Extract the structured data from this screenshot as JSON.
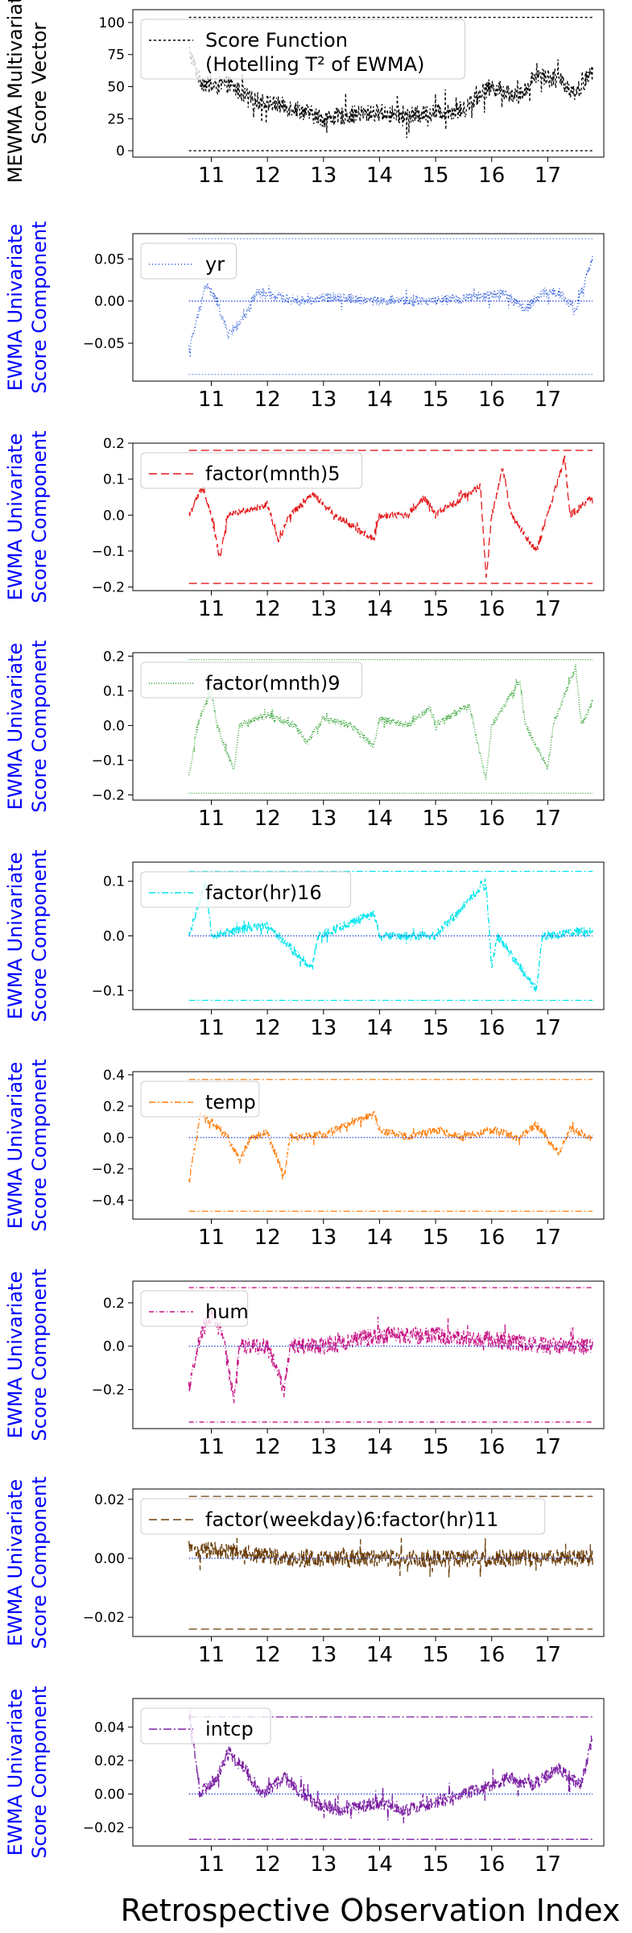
{
  "figure": {
    "xlabel": "Retrospective Observation Index",
    "x_ticks": [
      11,
      12,
      13,
      14,
      15,
      16,
      17
    ],
    "xlim": [
      9.6,
      18.0
    ],
    "data_x_range": [
      10.6,
      17.8
    ]
  },
  "chart_data": [
    {
      "type": "line",
      "ylabel_lines": [
        "MEWMA Multivariate",
        "Score Vector"
      ],
      "ylabel_color": "#000000",
      "legend": [
        "Score Function",
        "(Hotelling T² of EWMA)"
      ],
      "legend_placement": "top-left",
      "color": "#000000",
      "dash": "3,3",
      "ylim": [
        -5,
        110
      ],
      "yticks": [
        0,
        25,
        50,
        75,
        100
      ],
      "ytick_labels": [
        "0",
        "25",
        "50",
        "75",
        "100"
      ],
      "control_limits": [
        104,
        0
      ],
      "center": null,
      "noise": 7,
      "series_profile": [
        [
          10.6,
          78
        ],
        [
          10.8,
          55
        ],
        [
          11.0,
          50
        ],
        [
          11.3,
          52
        ],
        [
          11.7,
          40
        ],
        [
          12.5,
          33
        ],
        [
          13.0,
          25
        ],
        [
          13.5,
          28
        ],
        [
          14.0,
          30
        ],
        [
          14.5,
          27
        ],
        [
          15.0,
          30
        ],
        [
          15.5,
          32
        ],
        [
          15.8,
          45
        ],
        [
          16.0,
          50
        ],
        [
          16.5,
          42
        ],
        [
          16.8,
          60
        ],
        [
          17.2,
          55
        ],
        [
          17.5,
          45
        ],
        [
          17.8,
          62
        ]
      ]
    },
    {
      "type": "line",
      "ylabel_lines": [
        "EWMA Univariate",
        "Score Component"
      ],
      "ylabel_color": "#0000ff",
      "legend": [
        "yr"
      ],
      "legend_placement": "top-left",
      "color": "#1f4fd8",
      "dash": "1,3",
      "ylim": [
        -0.095,
        0.08
      ],
      "yticks": [
        -0.05,
        0.0,
        0.05
      ],
      "ytick_labels": [
        "−0.05",
        "0.00",
        "0.05"
      ],
      "control_limits": [
        0.074,
        -0.087
      ],
      "center": 0,
      "noise": 0.006,
      "series_profile": [
        [
          10.6,
          -0.06
        ],
        [
          10.75,
          -0.02
        ],
        [
          10.9,
          0.02
        ],
        [
          11.1,
          0.0
        ],
        [
          11.3,
          -0.04
        ],
        [
          11.6,
          -0.02
        ],
        [
          11.8,
          0.01
        ],
        [
          12.2,
          0.005
        ],
        [
          12.6,
          0.0
        ],
        [
          13.2,
          0.005
        ],
        [
          14.0,
          0.0
        ],
        [
          15.0,
          0.0
        ],
        [
          15.8,
          0.005
        ],
        [
          16.2,
          0.01
        ],
        [
          16.6,
          -0.01
        ],
        [
          16.9,
          0.01
        ],
        [
          17.2,
          0.01
        ],
        [
          17.5,
          -0.01
        ],
        [
          17.8,
          0.05
        ]
      ]
    },
    {
      "type": "line",
      "ylabel_lines": [
        "EWMA Univariate",
        "Score Component"
      ],
      "ylabel_color": "#0000ff",
      "legend": [
        "factor(mnth)5"
      ],
      "legend_placement": "top-left",
      "color": "#e41a1c",
      "dash": "10,5",
      "ylim": [
        -0.21,
        0.2
      ],
      "yticks": [
        -0.2,
        -0.1,
        0.0,
        0.1,
        0.2
      ],
      "ytick_labels": [
        "−0.2",
        "−0.1",
        "0.0",
        "0.1",
        "0.2"
      ],
      "control_limits": [
        0.18,
        -0.19
      ],
      "center": null,
      "noise": 0.01,
      "series_profile": [
        [
          10.6,
          0.0
        ],
        [
          10.85,
          0.08
        ],
        [
          11.0,
          0.0
        ],
        [
          11.15,
          -0.12
        ],
        [
          11.3,
          0.0
        ],
        [
          12.0,
          0.03
        ],
        [
          12.2,
          -0.07
        ],
        [
          12.4,
          0.0
        ],
        [
          12.8,
          0.06
        ],
        [
          13.2,
          0.0
        ],
        [
          13.9,
          -0.07
        ],
        [
          14.0,
          0.0
        ],
        [
          14.5,
          0.0
        ],
        [
          14.8,
          0.05
        ],
        [
          15.0,
          0.0
        ],
        [
          15.8,
          0.08
        ],
        [
          15.9,
          -0.18
        ],
        [
          16.0,
          0.0
        ],
        [
          16.2,
          0.13
        ],
        [
          16.35,
          0.0
        ],
        [
          16.8,
          -0.1
        ],
        [
          17.0,
          0.0
        ],
        [
          17.3,
          0.16
        ],
        [
          17.4,
          0.0
        ],
        [
          17.8,
          0.05
        ]
      ]
    },
    {
      "type": "line",
      "ylabel_lines": [
        "EWMA Univariate",
        "Score Component"
      ],
      "ylabel_color": "#0000ff",
      "legend": [
        "factor(mnth)9"
      ],
      "legend_placement": "top-left",
      "color": "#2ca02c",
      "dash": "1,2",
      "ylim": [
        -0.215,
        0.21
      ],
      "yticks": [
        -0.2,
        -0.1,
        0.0,
        0.1,
        0.2
      ],
      "ytick_labels": [
        "−0.2",
        "−0.1",
        "0.0",
        "0.1",
        "0.2"
      ],
      "control_limits": [
        0.19,
        -0.195
      ],
      "center": null,
      "noise": 0.01,
      "series_profile": [
        [
          10.6,
          -0.15
        ],
        [
          10.75,
          0.0
        ],
        [
          11.0,
          0.1
        ],
        [
          11.1,
          0.0
        ],
        [
          11.4,
          -0.13
        ],
        [
          11.5,
          0.0
        ],
        [
          12.0,
          0.03
        ],
        [
          12.5,
          0.0
        ],
        [
          12.7,
          -0.05
        ],
        [
          13.0,
          0.02
        ],
        [
          13.5,
          0.0
        ],
        [
          13.9,
          -0.06
        ],
        [
          14.0,
          0.02
        ],
        [
          14.5,
          0.0
        ],
        [
          14.9,
          0.05
        ],
        [
          15.0,
          0.0
        ],
        [
          15.6,
          0.06
        ],
        [
          15.9,
          -0.16
        ],
        [
          16.0,
          0.0
        ],
        [
          16.5,
          0.13
        ],
        [
          16.6,
          0.0
        ],
        [
          17.0,
          -0.12
        ],
        [
          17.1,
          0.0
        ],
        [
          17.5,
          0.17
        ],
        [
          17.6,
          0.0
        ],
        [
          17.8,
          0.07
        ]
      ]
    },
    {
      "type": "line",
      "ylabel_lines": [
        "EWMA Univariate",
        "Score Component"
      ],
      "ylabel_color": "#0000ff",
      "legend": [
        "factor(hr)16"
      ],
      "legend_placement": "top-left",
      "color": "#00e5ee",
      "dash": "8,3,2,3",
      "ylim": [
        -0.135,
        0.135
      ],
      "yticks": [
        -0.1,
        0.0,
        0.1
      ],
      "ytick_labels": [
        "−0.1",
        "0.0",
        "0.1"
      ],
      "control_limits": [
        0.118,
        -0.118
      ],
      "center": 0,
      "noise": 0.008,
      "series_profile": [
        [
          10.6,
          0.0
        ],
        [
          10.9,
          0.1
        ],
        [
          11.0,
          0.0
        ],
        [
          12.0,
          0.02
        ],
        [
          12.8,
          -0.06
        ],
        [
          12.9,
          0.0
        ],
        [
          13.9,
          0.04
        ],
        [
          14.0,
          0.0
        ],
        [
          15.0,
          0.0
        ],
        [
          15.9,
          0.1
        ],
        [
          16.0,
          -0.06
        ],
        [
          16.1,
          0.0
        ],
        [
          16.8,
          -0.1
        ],
        [
          16.9,
          0.0
        ],
        [
          17.8,
          0.01
        ]
      ]
    },
    {
      "type": "line",
      "ylabel_lines": [
        "EWMA Univariate",
        "Score Component"
      ],
      "ylabel_color": "#0000ff",
      "legend": [
        "temp"
      ],
      "legend_placement": "top-left",
      "color": "#ff7f0e",
      "dash": "8,3,2,3",
      "ylim": [
        -0.52,
        0.42
      ],
      "yticks": [
        -0.4,
        -0.2,
        0.0,
        0.2,
        0.4
      ],
      "ytick_labels": [
        "−0.4",
        "−0.2",
        "0.0",
        "0.2",
        "0.4"
      ],
      "control_limits": [
        0.37,
        -0.47
      ],
      "center": 0,
      "noise": 0.025,
      "series_profile": [
        [
          10.6,
          -0.3
        ],
        [
          10.8,
          0.15
        ],
        [
          11.0,
          0.1
        ],
        [
          11.3,
          0.0
        ],
        [
          11.5,
          -0.15
        ],
        [
          11.7,
          0.0
        ],
        [
          12.0,
          0.03
        ],
        [
          12.3,
          -0.25
        ],
        [
          12.4,
          0.0
        ],
        [
          13.0,
          0.02
        ],
        [
          13.9,
          0.15
        ],
        [
          14.0,
          0.05
        ],
        [
          14.5,
          0.0
        ],
        [
          15.0,
          0.05
        ],
        [
          15.5,
          0.0
        ],
        [
          16.0,
          0.05
        ],
        [
          16.5,
          0.0
        ],
        [
          16.8,
          0.08
        ],
        [
          17.2,
          -0.1
        ],
        [
          17.4,
          0.05
        ],
        [
          17.8,
          0.0
        ]
      ]
    },
    {
      "type": "line",
      "ylabel_lines": [
        "EWMA Univariate",
        "Score Component"
      ],
      "ylabel_color": "#0000ff",
      "legend": [
        "hum"
      ],
      "legend_placement": "top-left",
      "color": "#c71585",
      "dash": "6,3,1,3",
      "ylim": [
        -0.38,
        0.3
      ],
      "yticks": [
        -0.2,
        0.0,
        0.2
      ],
      "ytick_labels": [
        "−0.2",
        "0.0",
        "0.2"
      ],
      "control_limits": [
        0.27,
        -0.35
      ],
      "center": 0,
      "noise": 0.04,
      "series_profile": [
        [
          10.6,
          -0.2
        ],
        [
          10.8,
          0.05
        ],
        [
          11.0,
          0.15
        ],
        [
          11.2,
          0.05
        ],
        [
          11.4,
          -0.25
        ],
        [
          11.5,
          0.0
        ],
        [
          12.0,
          0.0
        ],
        [
          12.3,
          -0.2
        ],
        [
          12.4,
          0.0
        ],
        [
          13.0,
          0.0
        ],
        [
          14.0,
          0.05
        ],
        [
          15.0,
          0.05
        ],
        [
          16.0,
          0.03
        ],
        [
          17.0,
          0.0
        ],
        [
          17.8,
          0.0
        ]
      ]
    },
    {
      "type": "line",
      "ylabel_lines": [
        "EWMA Univariate",
        "Score Component"
      ],
      "ylabel_color": "#0000ff",
      "legend": [
        "factor(weekday)6:factor(hr)11"
      ],
      "legend_placement": "top-left",
      "color": "#6b3e0a",
      "dash": "10,5",
      "ylim": [
        -0.0265,
        0.0235
      ],
      "yticks": [
        -0.02,
        0.0,
        0.02
      ],
      "ytick_labels": [
        "−0.02",
        "0.00",
        "0.02"
      ],
      "control_limits": [
        0.021,
        -0.024
      ],
      "center": 0,
      "noise": 0.003,
      "series_profile": [
        [
          10.6,
          0.003
        ],
        [
          11.5,
          0.002
        ],
        [
          12.5,
          0.0
        ],
        [
          13.5,
          0.0
        ],
        [
          14.5,
          0.0
        ],
        [
          15.5,
          0.0
        ],
        [
          16.5,
          0.0
        ],
        [
          17.8,
          0.0
        ]
      ]
    },
    {
      "type": "line",
      "ylabel_lines": [
        "EWMA Univariate",
        "Score Component"
      ],
      "ylabel_color": "#0000ff",
      "legend": [
        "intcp"
      ],
      "legend_placement": "top-left",
      "color": "#7b1fa2",
      "dash": "10,3,2,3",
      "ylim": [
        -0.031,
        0.057
      ],
      "yticks": [
        -0.02,
        0.0,
        0.02,
        0.04
      ],
      "ytick_labels": [
        "−0.02",
        "0.00",
        "0.02",
        "0.04"
      ],
      "control_limits": [
        0.046,
        -0.027
      ],
      "center": 0,
      "noise": 0.004,
      "series_profile": [
        [
          10.6,
          0.05
        ],
        [
          10.8,
          0.0
        ],
        [
          11.1,
          0.01
        ],
        [
          11.3,
          0.025
        ],
        [
          11.6,
          0.015
        ],
        [
          11.9,
          0.0
        ],
        [
          12.3,
          0.01
        ],
        [
          12.8,
          -0.005
        ],
        [
          13.3,
          -0.01
        ],
        [
          14.0,
          -0.005
        ],
        [
          14.5,
          -0.01
        ],
        [
          15.0,
          -0.005
        ],
        [
          15.5,
          0.0
        ],
        [
          16.0,
          0.005
        ],
        [
          16.3,
          0.01
        ],
        [
          16.7,
          0.005
        ],
        [
          17.2,
          0.015
        ],
        [
          17.6,
          0.005
        ],
        [
          17.8,
          0.035
        ]
      ]
    }
  ]
}
